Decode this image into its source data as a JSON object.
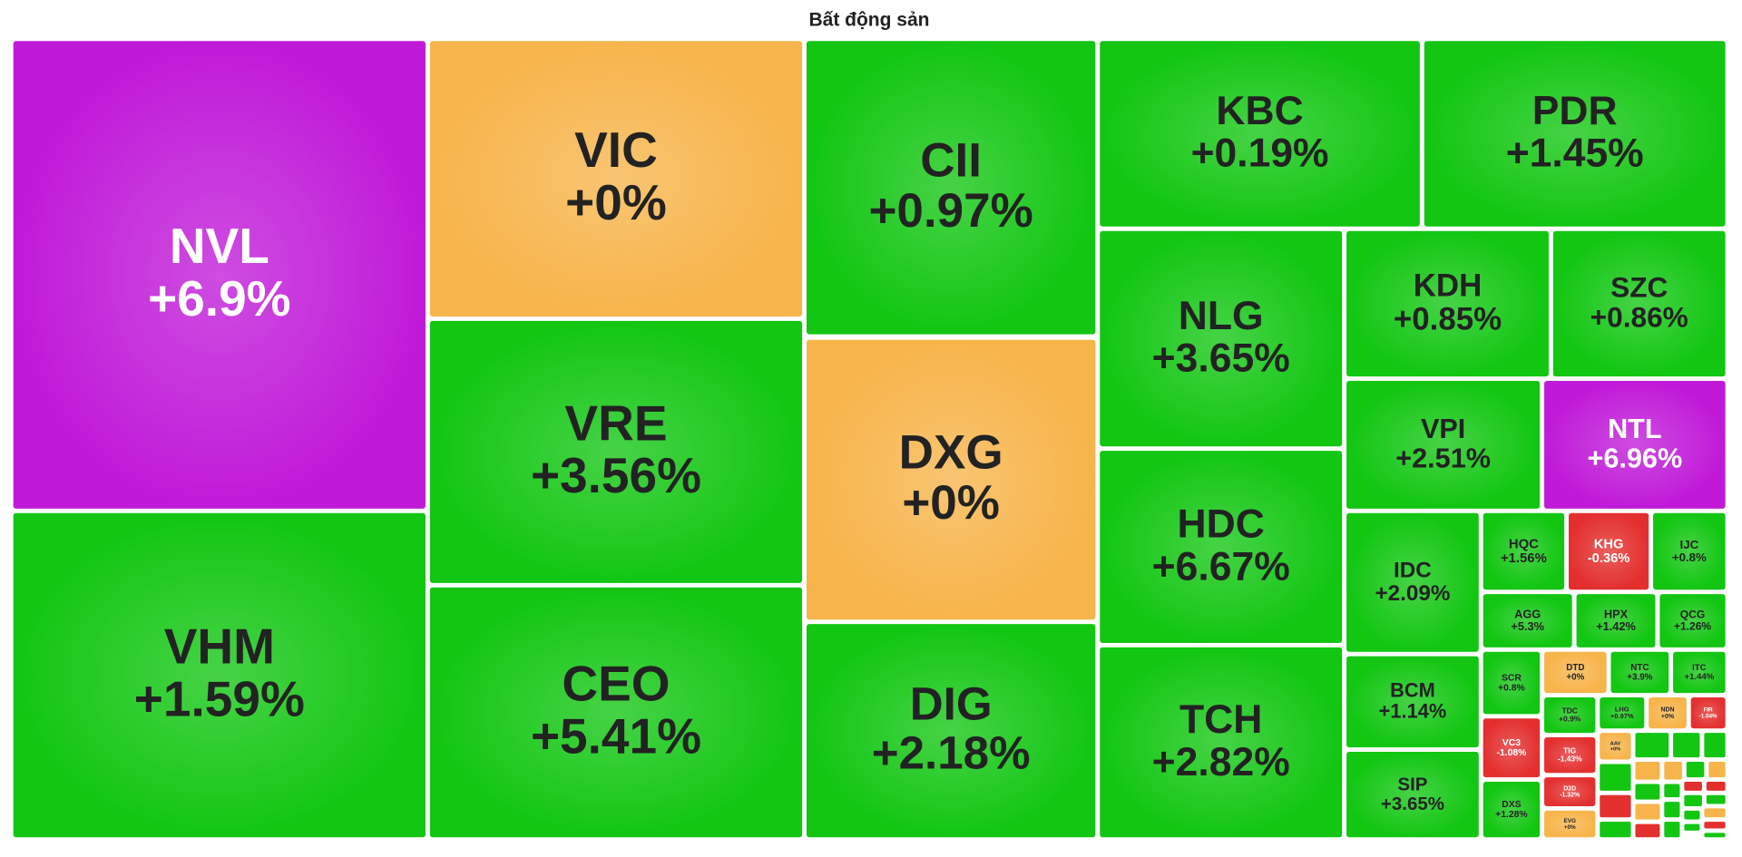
{
  "chart_data": {
    "type": "treemap",
    "title": "Bất động sản",
    "categories": [
      "NVL",
      "VHM",
      "VIC",
      "VRE",
      "CEO",
      "CII",
      "DXG",
      "DIG",
      "KBC",
      "PDR",
      "NLG",
      "HDC",
      "TCH",
      "KDH",
      "SZC",
      "VPI",
      "NTL",
      "IDC",
      "BCM",
      "SIP",
      "HQC",
      "KHG",
      "IJC",
      "AGG",
      "HPX",
      "QCG",
      "SCR",
      "DTD",
      "NTC",
      "ITC",
      "TDC",
      "LHG",
      "NDN",
      "FIR",
      "VC3",
      "TIG",
      "D2D",
      "EVG",
      "DXS",
      "AAV"
    ],
    "values": [
      6.9,
      1.59,
      0,
      3.56,
      5.41,
      0.97,
      0,
      2.18,
      0.19,
      1.45,
      3.65,
      6.67,
      2.82,
      0.85,
      0.86,
      2.51,
      6.96,
      2.09,
      1.14,
      3.65,
      1.56,
      -0.36,
      0.8,
      5.3,
      1.42,
      1.26,
      0.8,
      0,
      3.9,
      1.44,
      0.9,
      0.97,
      0,
      -1.04,
      -1.08,
      -1.43,
      -1.32,
      0,
      1.28,
      0
    ],
    "value_labels": [
      "+6.9%",
      "+1.59%",
      "+0%",
      "+3.56%",
      "+5.41%",
      "+0.97%",
      "+0%",
      "+2.18%",
      "+0.19%",
      "+1.45%",
      "+3.65%",
      "+6.67%",
      "+2.82%",
      "+0.85%",
      "+0.86%",
      "+2.51%",
      "+6.96%",
      "+2.09%",
      "+1.14%",
      "+3.65%",
      "+1.56%",
      "-0.36%",
      "+0.8%",
      "+5.3%",
      "+1.42%",
      "+1.26%",
      "+0.8%",
      "+0%",
      "+3.9%",
      "+1.44%",
      "+0.9%",
      "+0.97%",
      "+0%",
      "-1.04%",
      "-1.08%",
      "-1.43%",
      "-1.32%",
      "+0%",
      "+1.28%",
      "+0%"
    ],
    "colors": [
      "#c01ad8",
      "#12c612",
      "#f7b44a",
      "#12c612",
      "#12c612",
      "#12c612",
      "#f7b44a",
      "#12c612",
      "#12c612",
      "#12c612",
      "#12c612",
      "#12c612",
      "#12c612",
      "#12c612",
      "#12c612",
      "#12c612",
      "#c01ad8",
      "#12c612",
      "#12c612",
      "#12c612",
      "#12c612",
      "#e3302f",
      "#12c612",
      "#12c612",
      "#12c612",
      "#12c612",
      "#12c612",
      "#f7b44a",
      "#12c612",
      "#12c612",
      "#12c612",
      "#12c612",
      "#f7b44a",
      "#e3302f",
      "#e3302f",
      "#e3302f",
      "#e3302f",
      "#f7b44a",
      "#12c612",
      "#f7b44a"
    ]
  }
}
